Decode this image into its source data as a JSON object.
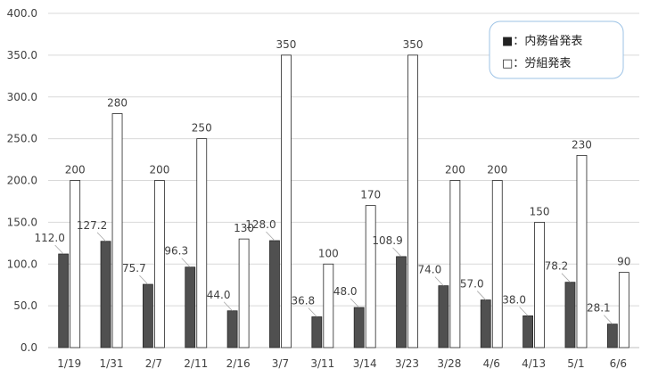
{
  "chart_data": {
    "type": "bar",
    "categories": [
      "1/19",
      "1/31",
      "2/7",
      "2/11",
      "2/16",
      "3/7",
      "3/11",
      "3/14",
      "3/23",
      "3/28",
      "4/6",
      "4/13",
      "5/1",
      "6/6"
    ],
    "series": [
      {
        "name": "内務省発表",
        "color": "#505050",
        "values": [
          112.0,
          127.2,
          75.7,
          96.3,
          44.0,
          128.0,
          36.8,
          48.0,
          108.9,
          74.0,
          57.0,
          38.0,
          78.2,
          28.1
        ],
        "labels": [
          "112.0",
          "127.2",
          "75.7",
          "96.3",
          "44.0",
          "128.0",
          "36.8",
          "48.0",
          "108.9",
          "74.0",
          "57.0",
          "38.0",
          "78.2",
          "28.1"
        ]
      },
      {
        "name": "労組発表",
        "color": "#ffffff",
        "values": [
          200,
          280,
          200,
          250,
          130,
          350,
          100,
          170,
          350,
          200,
          200,
          150,
          230,
          90
        ],
        "labels": [
          "200",
          "280",
          "200",
          "250",
          "130",
          "350",
          "100",
          "170",
          "350",
          "200",
          "200",
          "150",
          "230",
          "90"
        ]
      }
    ],
    "ylim": [
      0,
      400
    ],
    "yticks": [
      "0.0",
      "50.0",
      "100.0",
      "150.0",
      "200.0",
      "250.0",
      "300.0",
      "350.0",
      "400.0"
    ],
    "grid": true,
    "legend_position": "top-right",
    "legend": {
      "items": [
        {
          "marker": "■",
          "sep": "：",
          "text": "内務省発表"
        },
        {
          "marker": "□",
          "sep": "：",
          "text": "労組発表"
        }
      ]
    },
    "title": "",
    "xlabel": "",
    "ylabel": ""
  }
}
